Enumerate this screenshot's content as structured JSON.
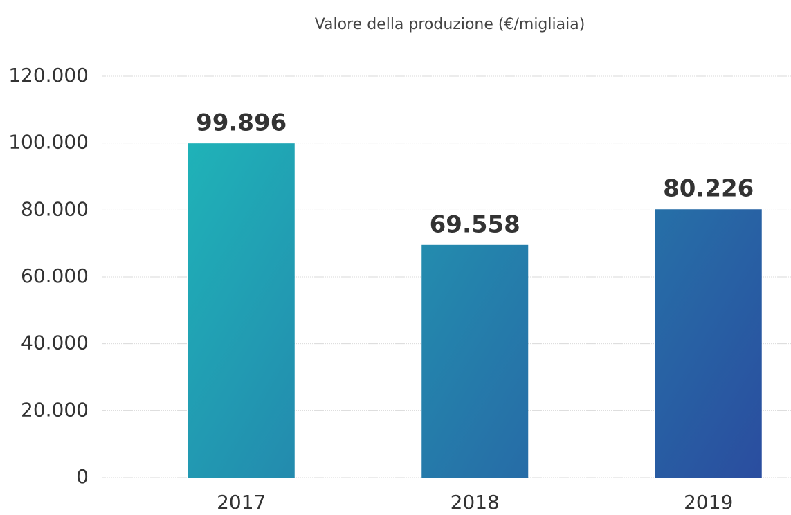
{
  "chart_data": {
    "type": "bar",
    "title": "Valore della produzione (€/migliaia)",
    "categories": [
      "2017",
      "2018",
      "2019"
    ],
    "values": [
      99896,
      69558,
      80226
    ],
    "value_labels": [
      "99.896",
      "69.558",
      "80.226"
    ],
    "gradient": [
      "#1fb3b8",
      "#2a4d9f"
    ],
    "ylim": [
      0,
      120000
    ],
    "yticks": [
      0,
      {
        "value": 20000,
        "label": "20.000"
      },
      {
        "value": 40000,
        "label": "40.000"
      },
      {
        "value": 60000,
        "label": "60.000"
      },
      {
        "value": 80000,
        "label": "80.000"
      },
      {
        "value": 100000,
        "label": "100.000"
      },
      {
        "value": 120000,
        "label": "120.000"
      }
    ],
    "grid": true
  }
}
